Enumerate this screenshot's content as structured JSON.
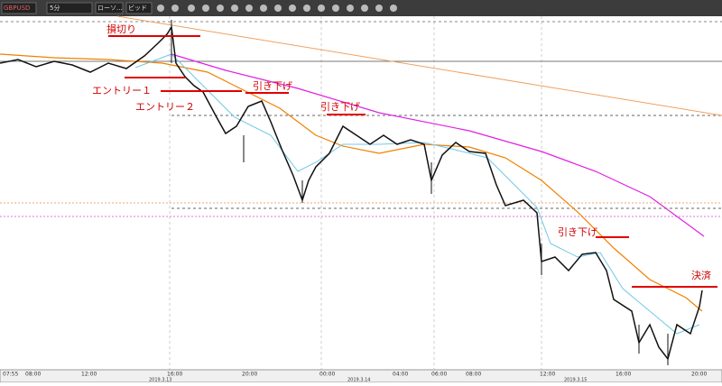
{
  "toolbar": {
    "symbol": "GBPUSD",
    "timeframe": "5分",
    "chart_type": "ローソ...",
    "mode": "ビッド"
  },
  "annotations": [
    "損切り",
    "エントリー１",
    "エントリー２",
    "引き下げ",
    "引き下げ",
    "引き下げ",
    "決済"
  ],
  "time_axis": {
    "times": [
      "07:55",
      "08:00",
      "12:00",
      "16:00",
      "20:00",
      "00:00",
      "04:00",
      "06:00",
      "08:00",
      "12:00",
      "16:00",
      "20:00"
    ],
    "dates": [
      "2019.3.13",
      "2019.3.14",
      "2019.3.15"
    ]
  }
}
